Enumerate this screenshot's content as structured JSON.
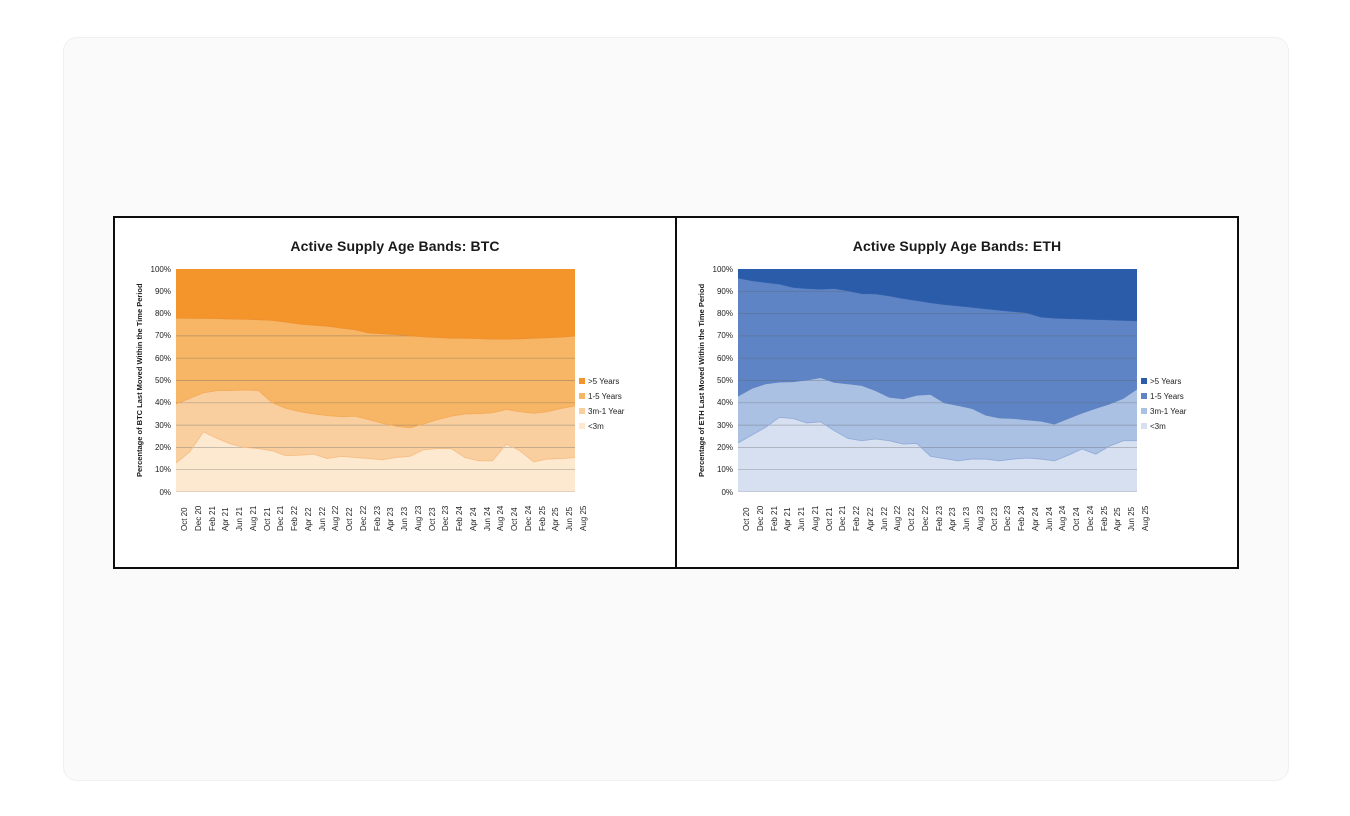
{
  "chart_data": [
    {
      "type": "area",
      "stacked": true,
      "percent_stack": true,
      "title": "Active Supply Age Bands: BTC",
      "ylabel": "Percentage of BTC Last Moved Within the Time Period",
      "ylim": [
        0,
        100
      ],
      "yticks": [
        "100%",
        "90%",
        "80%",
        "70%",
        "60%",
        "50%",
        "40%",
        "30%",
        "20%",
        "10%",
        "0%"
      ],
      "grid": "horizontal",
      "legend_position": "right",
      "stack_order": "bottom-up: <3m, 3m-1 Year, 1-5 Years, >5 Years",
      "categories": [
        "Oct 20",
        "Dec 20",
        "Feb 21",
        "Apr 21",
        "Jun 21",
        "Aug 21",
        "Oct 21",
        "Dec 21",
        "Feb 22",
        "Apr 22",
        "Jun 22",
        "Aug 22",
        "Oct 22",
        "Dec 22",
        "Feb 23",
        "Apr 23",
        "Jun 23",
        "Aug 23",
        "Oct 23",
        "Dec 23",
        "Feb 24",
        "Apr 24",
        "Jun 24",
        "Aug 24",
        "Oct 24",
        "Dec 24",
        "Feb 25",
        "Apr 25",
        "Jun 25",
        "Aug 25"
      ],
      "series": [
        {
          "name": ">5 Years",
          "color": "#F3952A",
          "line": null,
          "values": [
            22,
            22.1,
            22.1,
            22.2,
            22.4,
            22.5,
            22.7,
            23,
            23.8,
            24.7,
            25.2,
            25.6,
            26.5,
            27.2,
            28.6,
            29,
            29.4,
            29.9,
            30.4,
            30.7,
            31,
            31,
            31.2,
            31.4,
            31.4,
            31.3,
            31,
            30.8,
            30.5,
            30
          ]
        },
        {
          "name": "1-5 Years",
          "color": "#F7B566",
          "line": "#EE9130",
          "values": [
            38.5,
            35.9,
            33.4,
            32.3,
            32.1,
            31.7,
            31.8,
            37,
            38.7,
            39.3,
            39.8,
            40.1,
            39.7,
            38.8,
            38.9,
            40.2,
            41.1,
            41.3,
            39.1,
            36.8,
            35,
            34,
            33.6,
            33.1,
            31.6,
            32.7,
            33.7,
            33.2,
            32,
            31.4
          ]
        },
        {
          "name": "3m-1 Year",
          "color": "#FACFA0",
          "line": "#F5AC58",
          "values": [
            26.5,
            24,
            17.5,
            21.5,
            24,
            25.8,
            26,
            21.5,
            21.2,
            19.5,
            18,
            19.3,
            17.8,
            18.5,
            17.5,
            16.3,
            14,
            12.8,
            11.5,
            13,
            14.5,
            19.5,
            21.2,
            21.5,
            15.5,
            17.5,
            21.8,
            21.2,
            22.5,
            23.1
          ]
        },
        {
          "name": "<3m",
          "color": "#FCE9D0",
          "line": "#F7BE83",
          "values": [
            13,
            18,
            27,
            24,
            21.5,
            20,
            19.5,
            18.5,
            16.3,
            16.5,
            17,
            15,
            16,
            15.5,
            15,
            14.5,
            15.5,
            16,
            19,
            19.5,
            19.5,
            15.5,
            14,
            14,
            21.5,
            18.5,
            13.5,
            14.8,
            15,
            15.5
          ]
        }
      ]
    },
    {
      "type": "area",
      "stacked": true,
      "percent_stack": true,
      "title": "Active Supply Age Bands: ETH",
      "ylabel": "Percentage of ETH Last Moved Within the Time Period",
      "ylim": [
        0,
        100
      ],
      "yticks": [
        "100%",
        "90%",
        "80%",
        "70%",
        "60%",
        "50%",
        "40%",
        "30%",
        "20%",
        "10%",
        "0%"
      ],
      "grid": "horizontal",
      "legend_position": "right",
      "stack_order": "bottom-up: <3m, 3m-1 Year, 1-5 Years, >5 Years",
      "categories": [
        "Oct 20",
        "Dec 20",
        "Feb 21",
        "Apr 21",
        "Jun 21",
        "Aug 21",
        "Oct 21",
        "Dec 21",
        "Feb 22",
        "Apr 22",
        "Jun 22",
        "Aug 22",
        "Oct 22",
        "Dec 22",
        "Feb 23",
        "Apr 23",
        "Jun 23",
        "Aug 23",
        "Oct 23",
        "Dec 23",
        "Feb 24",
        "Apr 24",
        "Jun 24",
        "Aug 24",
        "Oct 24",
        "Dec 24",
        "Feb 25",
        "Apr 25",
        "Jun 25",
        "Aug 25"
      ],
      "series": [
        {
          "name": ">5 Years",
          "color": "#2A5CAA",
          "line": null,
          "values": [
            4,
            5.2,
            6,
            6.7,
            8.2,
            8.7,
            9,
            8.7,
            9.7,
            11,
            11.1,
            12,
            13.2,
            14.1,
            15.1,
            15.9,
            16.5,
            17.1,
            17.8,
            18.4,
            19,
            19.6,
            21.5,
            22,
            22.2,
            22.4,
            22.6,
            22.8,
            23,
            23.2
          ]
        },
        {
          "name": "1-5 Years",
          "color": "#5E84C6",
          "line": "#2E5FAB",
          "values": [
            53,
            48.3,
            45.5,
            44,
            42.3,
            41.1,
            39.7,
            42.1,
            41.8,
            41.2,
            43.4,
            45.5,
            45,
            42.5,
            41.1,
            44.1,
            44.7,
            45.4,
            47.7,
            48.4,
            48,
            48,
            46.7,
            47.5,
            44.8,
            42.2,
            39.9,
            37.7,
            35,
            30.6
          ]
        },
        {
          "name": "3m-1 Year",
          "color": "#ABC1E4",
          "line": "#5F84C2",
          "values": [
            21,
            21,
            19.5,
            15.8,
            16.5,
            19.2,
            19.8,
            21.7,
            24.5,
            24.8,
            21.7,
            19.5,
            20.3,
            21.6,
            27.8,
            25,
            24.8,
            22.7,
            19.7,
            19.2,
            18.2,
            17.2,
            17,
            16.5,
            16.5,
            16.1,
            20.5,
            18.9,
            19,
            23.2
          ]
        },
        {
          "name": "<3m",
          "color": "#D6E0F1",
          "line": "#93ACD9",
          "values": [
            22,
            25.5,
            29,
            33.5,
            33,
            31,
            31.5,
            27.5,
            24,
            23,
            23.8,
            23,
            21.5,
            21.8,
            16,
            15,
            14,
            14.8,
            14.8,
            14,
            14.8,
            15.2,
            14.8,
            14,
            16.5,
            19.3,
            17,
            20.6,
            23,
            23
          ]
        }
      ]
    }
  ]
}
